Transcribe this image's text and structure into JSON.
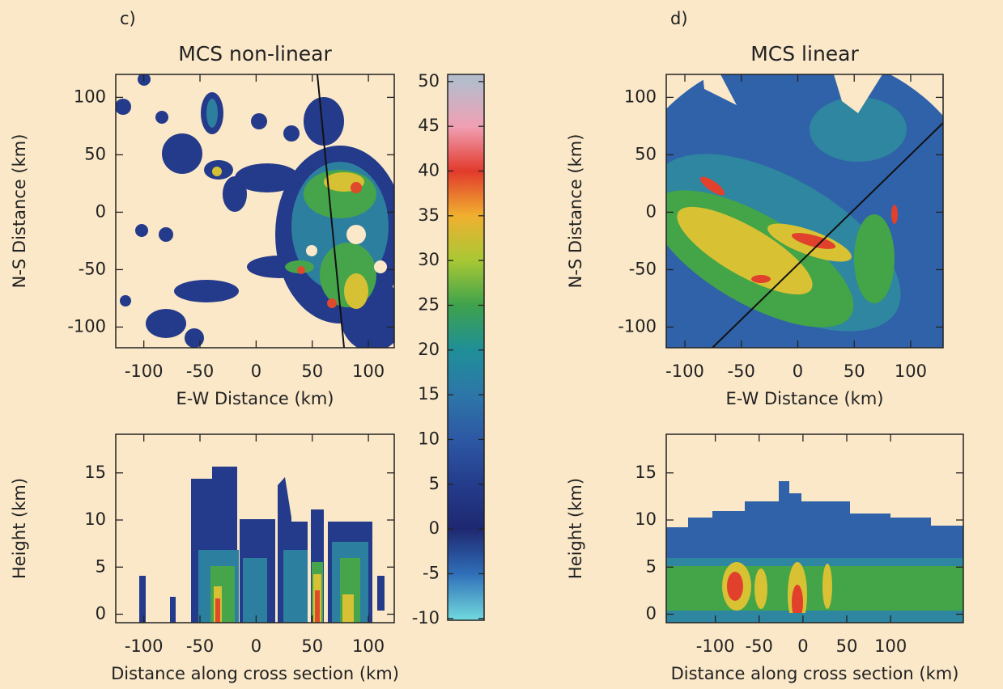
{
  "chart_data": [
    {
      "type": "heatmap",
      "panel_label": "c)",
      "title": "MCS non-linear",
      "xlabel": "E-W Distance (km)",
      "ylabel": "N-S Distance (km)",
      "xlim": [
        -125,
        123
      ],
      "ylim": [
        -118,
        120
      ],
      "xticks": [
        -100,
        -50,
        0,
        50,
        100
      ],
      "yticks": [
        -100,
        -50,
        0,
        50,
        100
      ]
    },
    {
      "type": "heatmap",
      "xlabel": "Distance along cross section (km)",
      "ylabel": "Height (km)",
      "xlim": [
        -125,
        123
      ],
      "ylim": [
        -0.9,
        19.1
      ],
      "xticks": [
        -100,
        -50,
        0,
        50,
        100
      ],
      "yticks": [
        0,
        5,
        10,
        15
      ]
    },
    {
      "type": "colorbar",
      "ylim": [
        -10.2,
        50.8
      ],
      "yticks": [
        -10,
        -5,
        0,
        5,
        10,
        15,
        20,
        25,
        30,
        35,
        40,
        45,
        50
      ],
      "colors": [
        "#6fd6dc",
        "#2f6fb8",
        "#1e2870",
        "#243c8c",
        "#2d58a4",
        "#2d76a8",
        "#1f8f98",
        "#3ea24c",
        "#a8c834",
        "#f0b030",
        "#e23a2c",
        "#f0a0b4",
        "#b4bccc"
      ]
    },
    {
      "type": "heatmap",
      "panel_label": "d)",
      "title": "MCS linear",
      "xlabel": "E-W Distance (km)",
      "ylabel": "N-S Distance (km)",
      "xlim": [
        -116.5,
        128.7
      ],
      "ylim": [
        -118,
        120
      ],
      "xticks": [
        -100,
        -50,
        0,
        50,
        100
      ],
      "yticks": [
        -100,
        -50,
        0,
        50,
        100
      ]
    },
    {
      "type": "heatmap",
      "xlabel": "Distance along cross section (km)",
      "ylabel": "Height (km)",
      "xlim": [
        -156,
        183
      ],
      "ylim": [
        -0.9,
        19.1
      ],
      "xticks": [
        -100,
        -50,
        0,
        50,
        100
      ],
      "yticks": [
        0,
        5,
        10,
        15
      ]
    }
  ]
}
